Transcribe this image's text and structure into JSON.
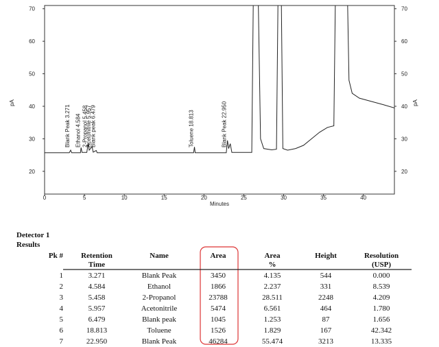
{
  "chart_data": {
    "type": "line",
    "xlabel": "Minutes",
    "ylabel": "pA",
    "y2label": "pA",
    "x": [
      0,
      3.1,
      3.27,
      3.4,
      4.5,
      4.58,
      4.7,
      5.3,
      5.46,
      5.6,
      5.96,
      6.1,
      6.48,
      6.6,
      18.7,
      18.81,
      18.9,
      22.8,
      22.95,
      23.1,
      23.3,
      23.5,
      26.0,
      26.2,
      26.8,
      27.1,
      27.5,
      28.5,
      29.1,
      29.3,
      29.7,
      29.9,
      30.5,
      31.5,
      32.5,
      33.5,
      34.5,
      35.5,
      36.3,
      36.5,
      38.0,
      38.2,
      38.6,
      39.5,
      41,
      42.5,
      43.9
    ],
    "values": [
      25.7,
      25.7,
      26.5,
      25.7,
      25.7,
      27.3,
      25.8,
      25.8,
      28.6,
      26.5,
      27.6,
      25.9,
      26.4,
      25.7,
      25.7,
      27.5,
      25.7,
      25.7,
      29.5,
      27,
      28.5,
      25.8,
      25.8,
      75,
      75,
      30,
      27,
      26.6,
      26.8,
      75,
      75,
      27,
      26.5,
      27,
      28,
      30,
      32,
      33.5,
      34,
      75,
      75,
      48,
      44,
      42.5,
      41.5,
      40.5,
      39.5
    ],
    "color": "#222222",
    "xlim": [
      0,
      43.9
    ],
    "ylim": [
      13,
      71
    ],
    "y2lim": [
      13,
      71
    ],
    "xticks": [
      0,
      5,
      10,
      15,
      20,
      25,
      30,
      35,
      40
    ],
    "yticks": [
      20,
      30,
      40,
      50,
      60,
      70
    ],
    "y2ticks": [
      20,
      30,
      40,
      50,
      60,
      70
    ],
    "annotations": [
      {
        "text": "Blank Peak  3.271",
        "x": 3.271
      },
      {
        "text": "Ethanol  4.584",
        "x": 4.584
      },
      {
        "text": "2-Propanol  5.458",
        "x": 5.458
      },
      {
        "text": "Acetonitrile  5.957",
        "x": 5.957
      },
      {
        "text": "Blank peak  6.479",
        "x": 6.479
      },
      {
        "text": "Toluene  18.813",
        "x": 18.813
      },
      {
        "text": "Blank Peak  22.950",
        "x": 22.95
      }
    ]
  },
  "table": {
    "title": "Detector 1",
    "subtitle": "Results",
    "headers": [
      "Pk #",
      "Retention Time",
      "Name",
      "Area",
      "Area %",
      "Height",
      "Resolution (USP)"
    ],
    "rows": [
      [
        "1",
        "3.271",
        "Blank Peak",
        "3450",
        "4.135",
        "544",
        "0.000"
      ],
      [
        "2",
        "4.584",
        "Ethanol",
        "1866",
        "2.237",
        "331",
        "8.539"
      ],
      [
        "3",
        "5.458",
        "2-Propanol",
        "23788",
        "28.511",
        "2248",
        "4.209"
      ],
      [
        "4",
        "5.957",
        "Acetonitrile",
        "5474",
        "6.561",
        "464",
        "1.780"
      ],
      [
        "5",
        "6.479",
        "Blank peak",
        "1045",
        "1.253",
        "87",
        "1.656"
      ],
      [
        "6",
        "18.813",
        "Toluene",
        "1526",
        "1.829",
        "167",
        "42.342"
      ],
      [
        "7",
        "22.950",
        "Blank Peak",
        "46284",
        "55.474",
        "3213",
        "13.335"
      ]
    ]
  }
}
